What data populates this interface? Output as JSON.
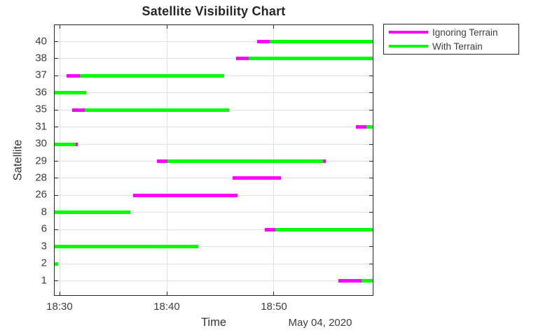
{
  "chart_data": {
    "type": "timeline",
    "title": "Satellite Visibility Chart",
    "xlabel": "Time",
    "ylabel": "Satellite",
    "date_annotation": "May 04, 2020",
    "grid": true,
    "legend_position": "outside-top-right",
    "legend": [
      {
        "label": "Ignoring Terrain",
        "color": "#ff00ff"
      },
      {
        "label": "With Terrain",
        "color": "#00ff00"
      }
    ],
    "x_axis": {
      "unit": "minutes after 18:30",
      "range": [
        -0.52,
        29.28
      ],
      "ticks": [
        {
          "value": 0,
          "label": "18:30"
        },
        {
          "value": 10,
          "label": "18:40"
        },
        {
          "value": 20,
          "label": "18:50"
        }
      ]
    },
    "satellites": [
      "40",
      "38",
      "37",
      "36",
      "35",
      "31",
      "30",
      "29",
      "28",
      "26",
      "8",
      "6",
      "3",
      "2",
      "1"
    ],
    "rows": [
      {
        "sat": "40",
        "ignoring": [
          18.48,
          19.61
        ],
        "terrain": [
          19.61,
          29.28
        ]
      },
      {
        "sat": "38",
        "ignoring": [
          16.45,
          17.65
        ],
        "terrain": [
          17.65,
          29.28
        ]
      },
      {
        "sat": "37",
        "ignoring": [
          0.59,
          1.83
        ],
        "terrain": [
          1.83,
          15.36
        ]
      },
      {
        "sat": "36",
        "ignoring": null,
        "terrain": [
          -0.52,
          2.42
        ]
      },
      {
        "sat": "35",
        "ignoring": [
          1.09,
          2.29
        ],
        "terrain": [
          2.29,
          15.8
        ]
      },
      {
        "sat": "31",
        "ignoring": [
          27.71,
          28.69
        ],
        "terrain": [
          28.69,
          29.28
        ]
      },
      {
        "sat": "30",
        "ignoring": [
          -0.52,
          1.63
        ],
        "terrain": [
          -0.52,
          1.42
        ]
      },
      {
        "sat": "29",
        "ignoring": [
          9.08,
          24.9
        ],
        "terrain": [
          10.05,
          24.64
        ]
      },
      {
        "sat": "28",
        "ignoring": [
          16.12,
          20.65
        ],
        "terrain": null
      },
      {
        "sat": "26",
        "ignoring": [
          6.86,
          16.62
        ],
        "terrain": null
      },
      {
        "sat": "8",
        "ignoring": null,
        "terrain": [
          -0.52,
          6.58
        ]
      },
      {
        "sat": "6",
        "ignoring": [
          19.17,
          20.15
        ],
        "terrain": [
          20.15,
          29.28
        ]
      },
      {
        "sat": "3",
        "ignoring": null,
        "terrain": [
          -0.52,
          12.96
        ]
      },
      {
        "sat": "2",
        "ignoring": null,
        "terrain": [
          -0.52,
          -0.18
        ]
      },
      {
        "sat": "1",
        "ignoring": [
          26.08,
          28.24
        ],
        "terrain": [
          28.24,
          29.28
        ]
      }
    ]
  }
}
